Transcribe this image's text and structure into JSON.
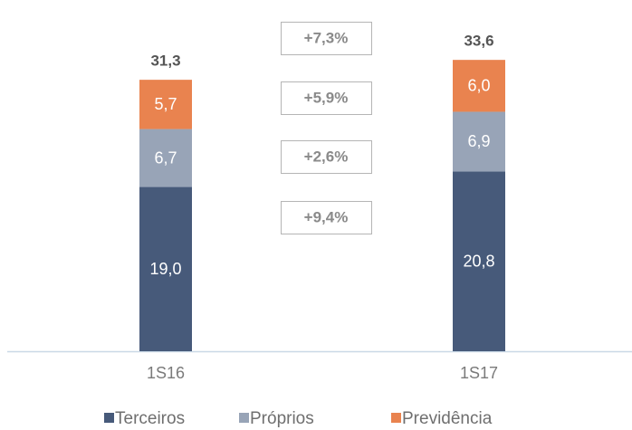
{
  "chart_data": {
    "type": "stacked-bar",
    "categories": [
      "1S16",
      "1S17"
    ],
    "series": [
      {
        "name": "Terceiros",
        "color": "#475a7a",
        "values": [
          19.0,
          20.8
        ],
        "value_labels": [
          "19,0",
          "20,8"
        ]
      },
      {
        "name": "Próprios",
        "color": "#98a4b7",
        "values": [
          6.7,
          6.9
        ],
        "value_labels": [
          "6,7",
          "6,9"
        ]
      },
      {
        "name": "Previdência",
        "color": "#e9834f",
        "values": [
          5.7,
          6.0
        ],
        "value_labels": [
          "5,7",
          "6,0"
        ]
      }
    ],
    "totals": {
      "values": [
        31.3,
        33.6
      ],
      "value_labels": [
        "31,3",
        "33,6"
      ]
    },
    "annotations": [
      "+7,3%",
      "+5,9%",
      "+2,6%",
      "+9,4%"
    ],
    "legend": "bottom"
  }
}
